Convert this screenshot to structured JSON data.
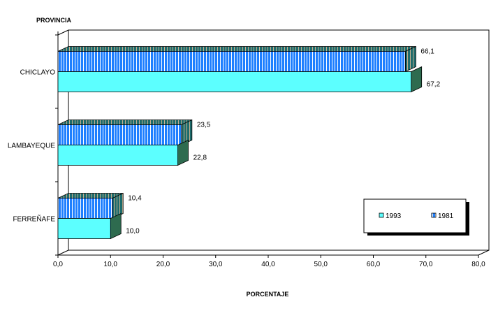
{
  "chart_data": {
    "type": "bar",
    "orientation": "horizontal",
    "three_d": true,
    "ylabel": "PROVINCIA",
    "xlabel": "PORCENTAJE",
    "categories": [
      "CHICLAYO",
      "LAMBAYEQUE",
      "FERREÑAFE"
    ],
    "series": [
      {
        "name": "1981",
        "values": [
          66.1,
          23.5,
          10.4
        ],
        "labels": [
          "66,1",
          "23,5",
          "10,4"
        ],
        "color": "#1E7FFF",
        "pattern": "vertical-stripes"
      },
      {
        "name": "1993",
        "values": [
          67.2,
          22.8,
          10.0
        ],
        "labels": [
          "67,2",
          "22,8",
          "10,0"
        ],
        "color": "#5CFFFF"
      }
    ],
    "xlim": [
      0,
      80
    ],
    "xticks": [
      "0,0",
      "10,0",
      "20,0",
      "30,0",
      "40,0",
      "50,0",
      "60,0",
      "70,0",
      "80,0"
    ],
    "legend": {
      "placement": "bottom-right",
      "entries": [
        "1993",
        "1981"
      ]
    },
    "grid": false
  }
}
